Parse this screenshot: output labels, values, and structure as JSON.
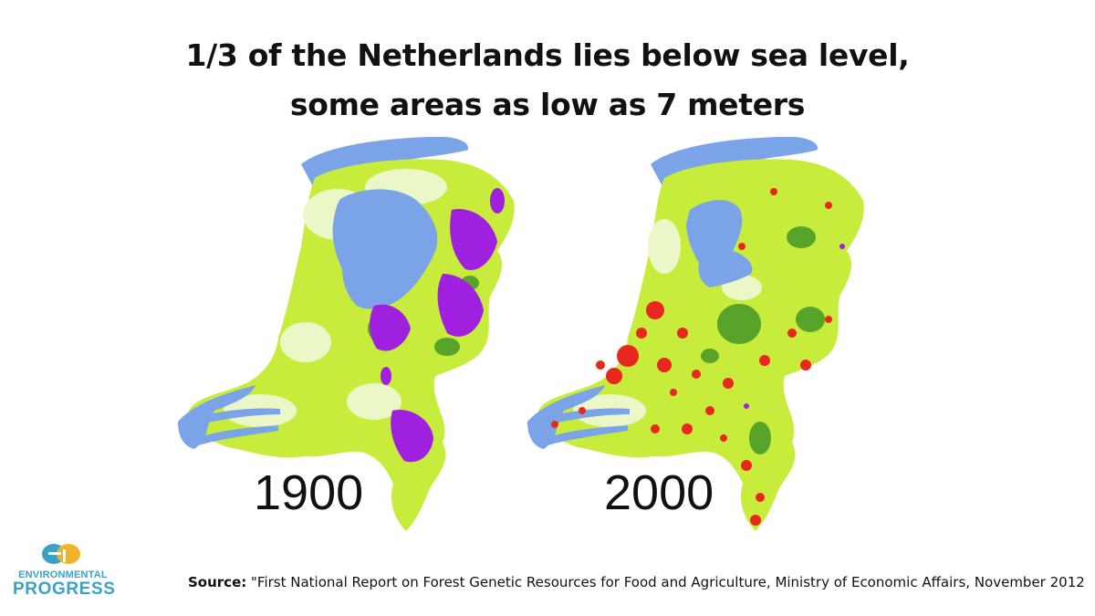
{
  "title": {
    "line1": "1/3 of the Netherlands lies below sea level,",
    "line2": "some areas as low as 7 meters"
  },
  "maps": [
    {
      "year": "1900",
      "landcover": [
        "lowland-green",
        "heath-purple",
        "forest-green"
      ]
    },
    {
      "year": "2000",
      "landcover": [
        "lowland-green",
        "urban-red",
        "forest-green"
      ]
    }
  ],
  "colors": {
    "water": "#7aa3e8",
    "land": "#c8ec3c",
    "land_pale": "#ecf7c8",
    "heath": "#a020e0",
    "urban": "#e8281e",
    "forest": "#58a32a",
    "logo": "#3aa1c9",
    "logo_accent": "#f0b42a"
  },
  "logo": {
    "line1": "ENVIRONMENTAL",
    "line2": "PROGRESS"
  },
  "source": {
    "label": "Source:",
    "text": " \"First National Report on Forest Genetic Resources for Food and Agriculture, Ministry of Economic Affairs, November 2012"
  }
}
